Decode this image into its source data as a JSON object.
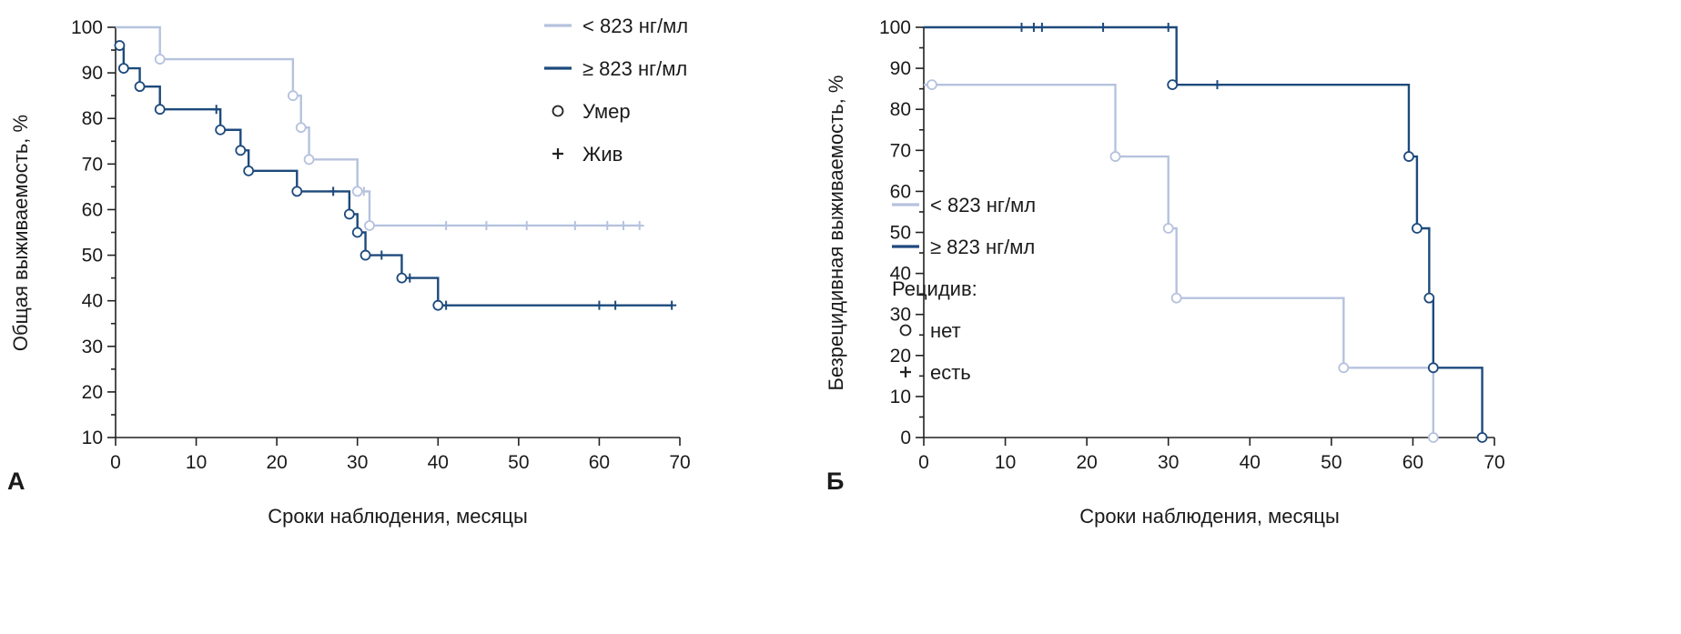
{
  "chart_data": [
    {
      "type": "line",
      "subtype": "kaplan-meier-step",
      "panel_label": "А",
      "xlabel": "Сроки наблюдения, месяцы",
      "ylabel": "Общая выживаемость, %",
      "xlim": [
        0,
        70
      ],
      "ylim": [
        10,
        100
      ],
      "xticks": [
        0,
        10,
        20,
        30,
        40,
        50,
        60,
        70
      ],
      "yticks": [
        10,
        20,
        30,
        40,
        50,
        60,
        70,
        80,
        90,
        100
      ],
      "grid": false,
      "series": [
        {
          "name": "< 823 нг/мл",
          "color": "#b6c2de",
          "points": [
            [
              0,
              100
            ],
            [
              5.5,
              93
            ],
            [
              22,
              85
            ],
            [
              23,
              78
            ],
            [
              24,
              71
            ],
            [
              30,
              64
            ],
            [
              31.5,
              56.5
            ]
          ],
          "tail_x": 65,
          "events": [
            [
              5.5,
              93
            ],
            [
              22,
              85
            ],
            [
              23,
              78
            ],
            [
              24,
              71
            ],
            [
              30,
              64
            ],
            [
              31.5,
              56.5
            ]
          ],
          "censored": [
            [
              30.8,
              64
            ],
            [
              41,
              56.5
            ],
            [
              46,
              56.5
            ],
            [
              51,
              56.5
            ],
            [
              57,
              56.5
            ],
            [
              61,
              56.5
            ],
            [
              63,
              56.5
            ],
            [
              65,
              56.5
            ]
          ]
        },
        {
          "name": "≥ 823 нг/мл",
          "color": "#1d4a7c",
          "points": [
            [
              0,
              96
            ],
            [
              1,
              91
            ],
            [
              3,
              87
            ],
            [
              5.5,
              82
            ],
            [
              13,
              77.5
            ],
            [
              15.5,
              73
            ],
            [
              16.5,
              68.5
            ],
            [
              22.5,
              64
            ],
            [
              29,
              59
            ],
            [
              30,
              55
            ],
            [
              31,
              50
            ],
            [
              35.5,
              45
            ],
            [
              40,
              39
            ]
          ],
          "tail_x": 69,
          "events": [
            [
              0.5,
              96
            ],
            [
              1,
              91
            ],
            [
              3,
              87
            ],
            [
              5.5,
              82
            ],
            [
              13,
              77.5
            ],
            [
              15.5,
              73
            ],
            [
              16.5,
              68.5
            ],
            [
              22.5,
              64
            ],
            [
              29,
              59
            ],
            [
              30,
              55
            ],
            [
              31,
              50
            ],
            [
              35.5,
              45
            ],
            [
              40,
              39
            ]
          ],
          "censored": [
            [
              12.5,
              82
            ],
            [
              27,
              64
            ],
            [
              33,
              50
            ],
            [
              36.5,
              45
            ],
            [
              41,
              39
            ],
            [
              60,
              39
            ],
            [
              62,
              39
            ],
            [
              69,
              39
            ]
          ]
        }
      ],
      "legend": [
        {
          "type": "line",
          "series": 0,
          "label": "< 823 нг/мл"
        },
        {
          "type": "line",
          "series": 1,
          "label": "≥ 823 нг/мл"
        },
        {
          "type": "circle",
          "label": "Умер"
        },
        {
          "type": "plus",
          "label": "Жив"
        }
      ]
    },
    {
      "type": "line",
      "subtype": "kaplan-meier-step",
      "panel_label": "Б",
      "xlabel": "Сроки наблюдения, месяцы",
      "ylabel": "Безрецидивная выживаемость, %",
      "xlim": [
        0,
        70
      ],
      "ylim": [
        0,
        100
      ],
      "xticks": [
        0,
        10,
        20,
        30,
        40,
        50,
        60,
        70
      ],
      "yticks": [
        0,
        10,
        20,
        30,
        40,
        50,
        60,
        70,
        80,
        90,
        100
      ],
      "grid": false,
      "series": [
        {
          "name": "< 823 нг/мл",
          "color": "#b6c2de",
          "points": [
            [
              0,
              86
            ],
            [
              23.5,
              68.5
            ],
            [
              30,
              51
            ],
            [
              31,
              34
            ],
            [
              51.5,
              17
            ],
            [
              62.5,
              0
            ]
          ],
          "tail_x": 62.5,
          "events": [
            [
              1,
              86
            ],
            [
              23.5,
              68.5
            ],
            [
              30,
              51
            ],
            [
              31,
              34
            ],
            [
              51.5,
              17
            ],
            [
              62.5,
              0
            ]
          ],
          "censored": []
        },
        {
          "name": "≥ 823 нг/мл",
          "color": "#1d4a7c",
          "points": [
            [
              0,
              100
            ],
            [
              31,
              86
            ],
            [
              59.5,
              68.5
            ],
            [
              60.5,
              51
            ],
            [
              62,
              34
            ],
            [
              62.5,
              17
            ],
            [
              68.5,
              0
            ]
          ],
          "tail_x": 68.5,
          "events": [
            [
              30.5,
              86
            ],
            [
              59.5,
              68.5
            ],
            [
              60.5,
              51
            ],
            [
              62,
              34
            ],
            [
              62.5,
              17
            ],
            [
              68.5,
              0
            ]
          ],
          "censored": [
            [
              12,
              100
            ],
            [
              13.5,
              100
            ],
            [
              14.5,
              100
            ],
            [
              22,
              100
            ],
            [
              30,
              100
            ],
            [
              36,
              86
            ]
          ]
        }
      ],
      "legend": [
        {
          "type": "line",
          "series": 0,
          "label": "< 823 нг/мл"
        },
        {
          "type": "line",
          "series": 1,
          "label": "≥ 823 нг/мл"
        },
        {
          "type": "text",
          "label": "Рецидив:"
        },
        {
          "type": "circle",
          "label": "нет"
        },
        {
          "type": "plus",
          "label": "есть"
        }
      ]
    }
  ]
}
